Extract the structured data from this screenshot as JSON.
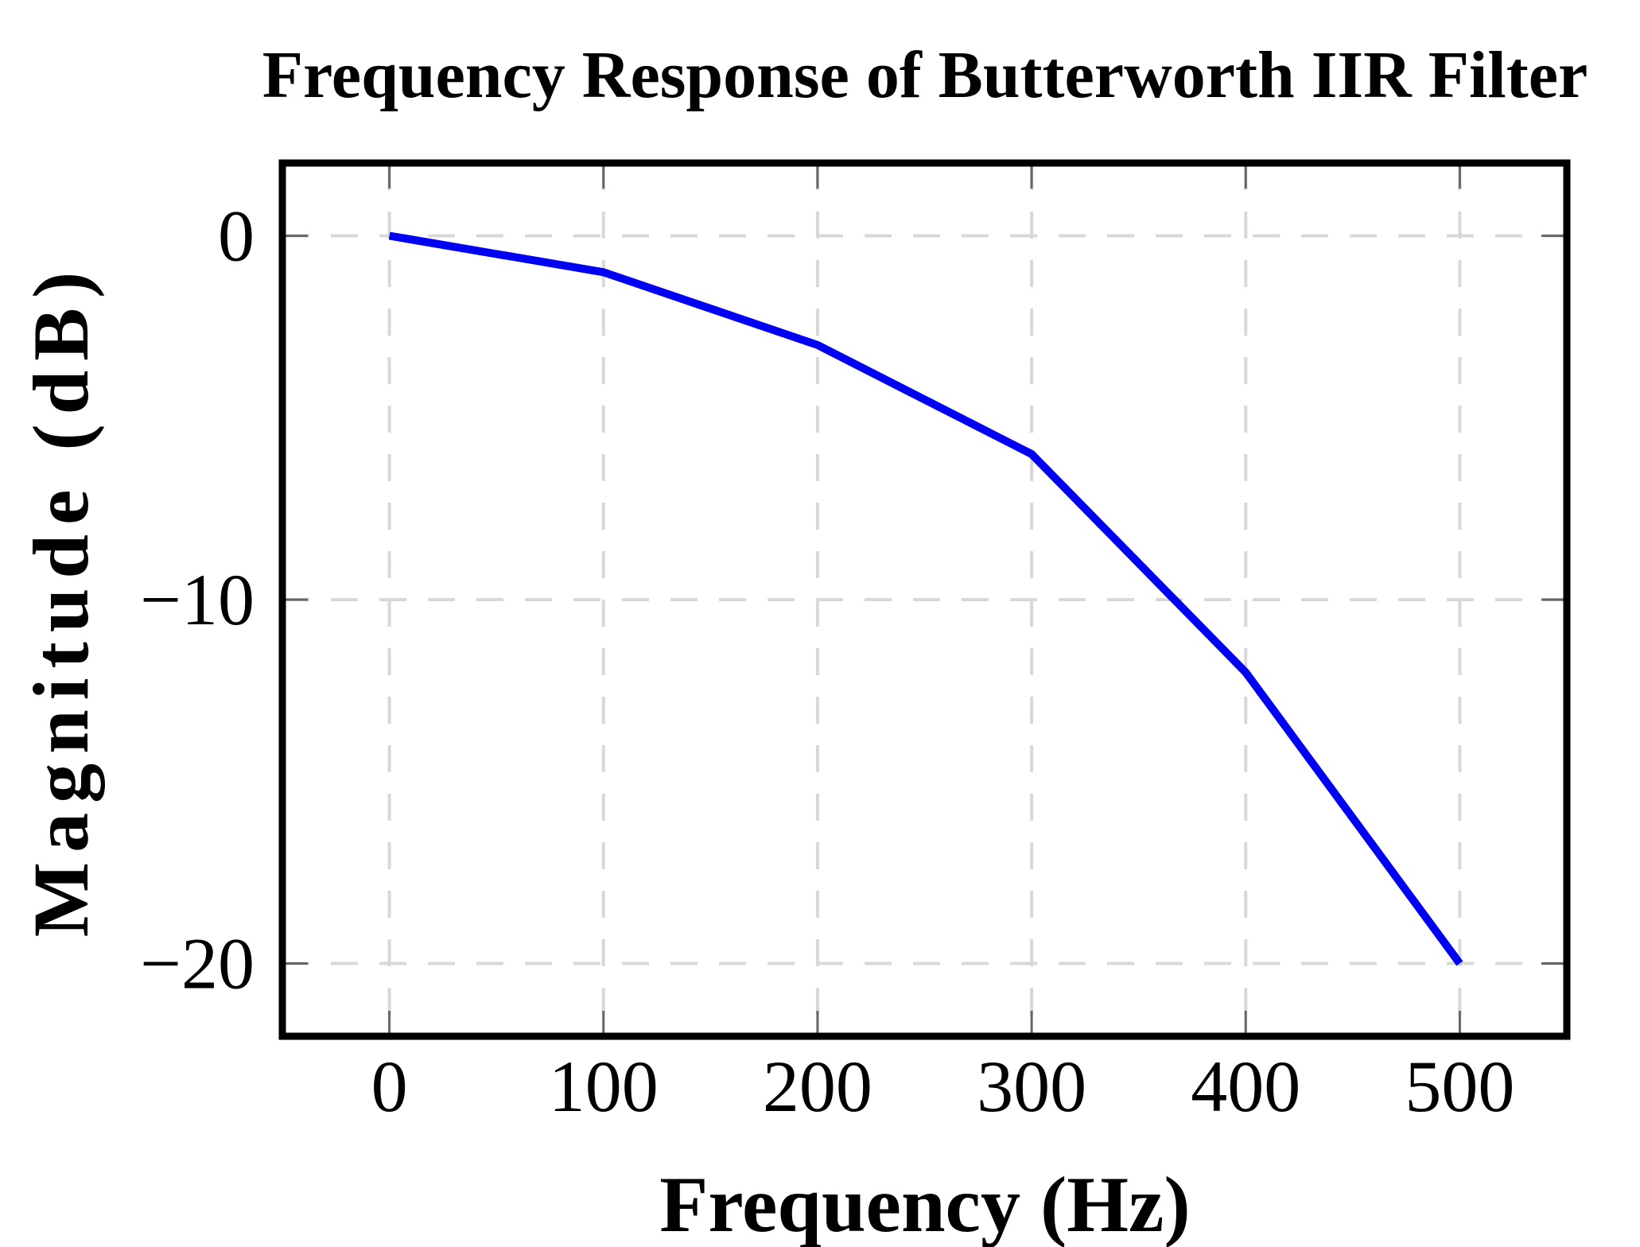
{
  "chart_data": {
    "type": "line",
    "title": "Frequency Response of Butterworth IIR Filter",
    "xlabel": "Frequency (Hz)",
    "ylabel": "Magnitude (dB)",
    "x": [
      0,
      100,
      200,
      300,
      400,
      500
    ],
    "y": [
      0,
      -1,
      -3,
      -6,
      -12,
      -20
    ],
    "xlim": [
      -50,
      550
    ],
    "ylim": [
      -22,
      2
    ],
    "xticks": {
      "values": [
        0,
        100,
        200,
        300,
        400,
        500
      ],
      "labels": [
        "0",
        "100",
        "200",
        "300",
        "400",
        "500"
      ]
    },
    "yticks": {
      "values": [
        0,
        -10,
        -20
      ],
      "labels": [
        "0",
        "−10",
        "−20"
      ]
    },
    "grid": {
      "visible": true,
      "style": "dashed"
    },
    "legend": {
      "visible": false
    },
    "colors": {
      "line": "#0000f2",
      "grid": "#d8d8d8",
      "axis_frame": "#000000",
      "tick_mark": "#666666",
      "text": "#000000",
      "background": "#ffffff"
    }
  }
}
